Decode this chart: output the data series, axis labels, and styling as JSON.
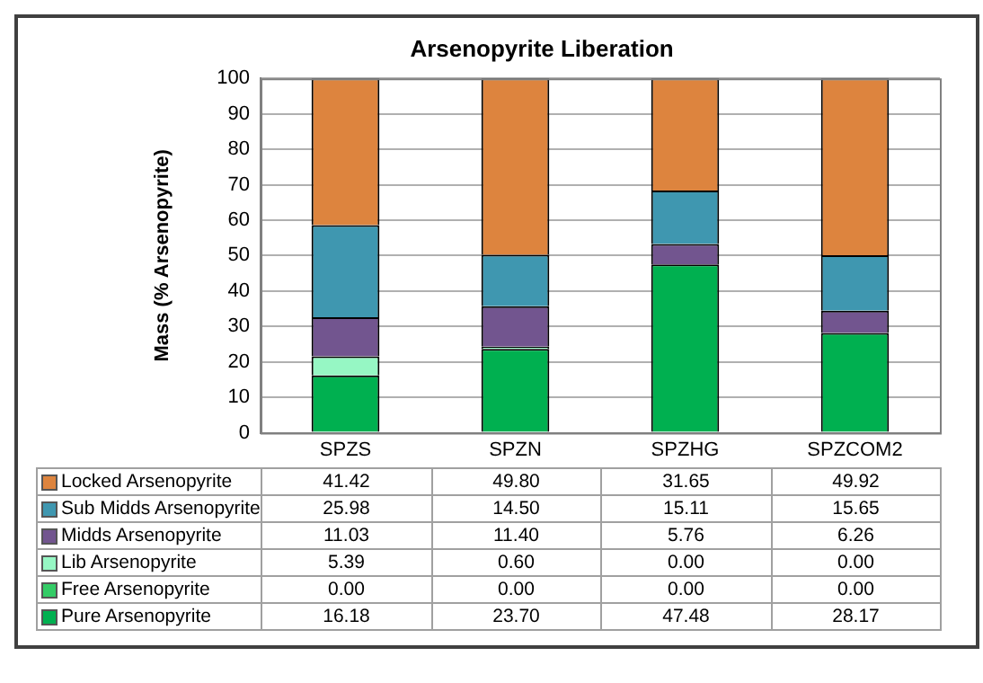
{
  "chart_data": {
    "type": "bar",
    "title": "Arsenopyrite Liberation",
    "ylabel": "Mass (% Arsenopyrite)",
    "categories": [
      "SPZS",
      "SPZN",
      "SPZHG",
      "SPZCOM2"
    ],
    "stacked": true,
    "ylim": [
      0,
      100
    ],
    "yticks": [
      0,
      10,
      20,
      30,
      40,
      50,
      60,
      70,
      80,
      90,
      100
    ],
    "grid": "y",
    "legend": "bottom",
    "series": [
      {
        "name": "Pure Arsenopyrite",
        "color": "#00b050",
        "values": [
          16.18,
          23.7,
          47.48,
          28.17
        ],
        "value_labels": [
          "16.18",
          "23.70",
          "47.48",
          "28.17"
        ]
      },
      {
        "name": "Free Arsenopyrite",
        "color": "#33cc66",
        "values": [
          0,
          0,
          0,
          0
        ],
        "value_labels": [
          "0.00",
          "0.00",
          "0.00",
          "0.00"
        ]
      },
      {
        "name": "Lib Arsenopyrite",
        "color": "#96f7c4",
        "values": [
          5.39,
          0.6,
          0,
          0
        ],
        "value_labels": [
          "5.39",
          "0.60",
          "0.00",
          "0.00"
        ]
      },
      {
        "name": "Midds Arsenopyrite",
        "color": "#72558f",
        "values": [
          11.03,
          11.4,
          5.76,
          6.26
        ],
        "value_labels": [
          "11.03",
          "11.40",
          "5.76",
          "6.26"
        ]
      },
      {
        "name": "Sub Midds Arsenopyrite",
        "color": "#3f97b0",
        "values": [
          25.98,
          14.5,
          15.11,
          15.65
        ],
        "value_labels": [
          "25.98",
          "14.50",
          "15.11",
          "15.65"
        ]
      },
      {
        "name": "Locked Arsenopyrite",
        "color": "#dd843e",
        "values": [
          41.42,
          49.8,
          31.65,
          49.92
        ],
        "value_labels": [
          "41.42",
          "49.80",
          "31.65",
          "49.92"
        ]
      }
    ]
  }
}
